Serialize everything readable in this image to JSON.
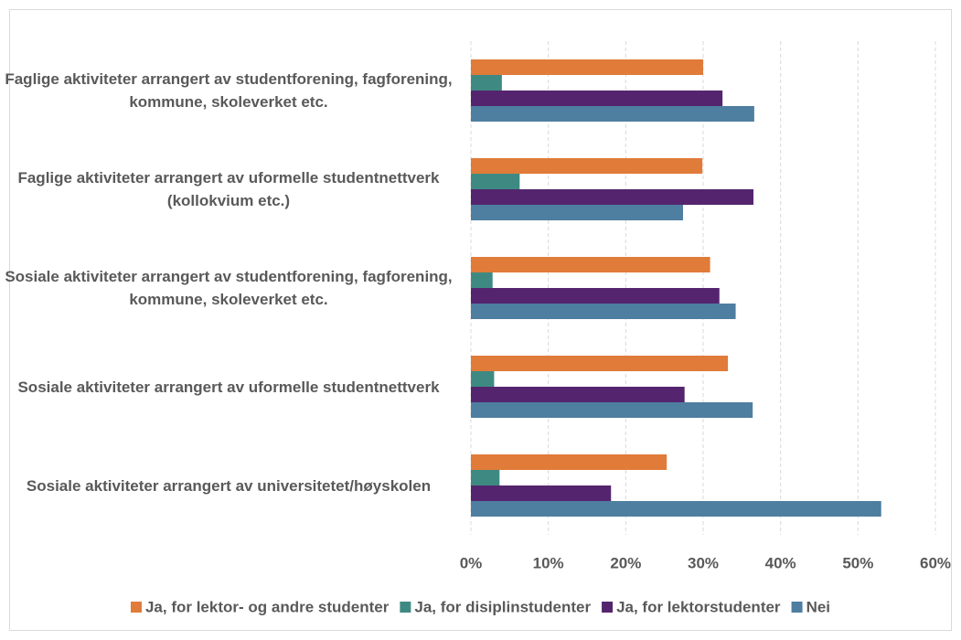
{
  "chart_data": {
    "type": "hbar",
    "categories": [
      "Faglige aktiviteter arrangert av studentforening, fagforening, kommune, skoleverket etc.",
      "Faglige aktiviteter arrangert av uformelle studentnettverk (kollokvium etc.)",
      "Sosiale aktiviteter arrangert av studentforening, fagforening, kommune, skoleverket etc.",
      "Sosiale aktiviteter arrangert av uformelle studentnettverk",
      "Sosiale aktiviteter arrangert av universitetet/høyskolen"
    ],
    "series": [
      {
        "name": "Ja, for lektor- og andre studenter",
        "color": "#e07b39",
        "values": [
          30,
          29.9,
          30.9,
          33.2,
          25.3
        ]
      },
      {
        "name": "Ja, for disiplinstudenter",
        "color": "#3e8a83",
        "values": [
          4.0,
          6.3,
          2.8,
          3.0,
          3.7
        ]
      },
      {
        "name": "Ja, for lektorstudenter",
        "color": "#54256e",
        "values": [
          32.5,
          36.5,
          32.1,
          27.6,
          18.1
        ]
      },
      {
        "name": "Nei",
        "color": "#4e7ea0",
        "values": [
          36.6,
          27.4,
          34.2,
          36.4,
          53.0
        ]
      }
    ],
    "xlim": [
      0,
      60
    ],
    "xticks": [
      {
        "value": 0,
        "label": "0%"
      },
      {
        "value": 10,
        "label": "10%"
      },
      {
        "value": 20,
        "label": "20%"
      },
      {
        "value": 30,
        "label": "30%"
      },
      {
        "value": 40,
        "label": "40%"
      },
      {
        "value": 50,
        "label": "50%"
      },
      {
        "value": 60,
        "label": "60%"
      }
    ],
    "grid": true,
    "legend": "bottom"
  }
}
